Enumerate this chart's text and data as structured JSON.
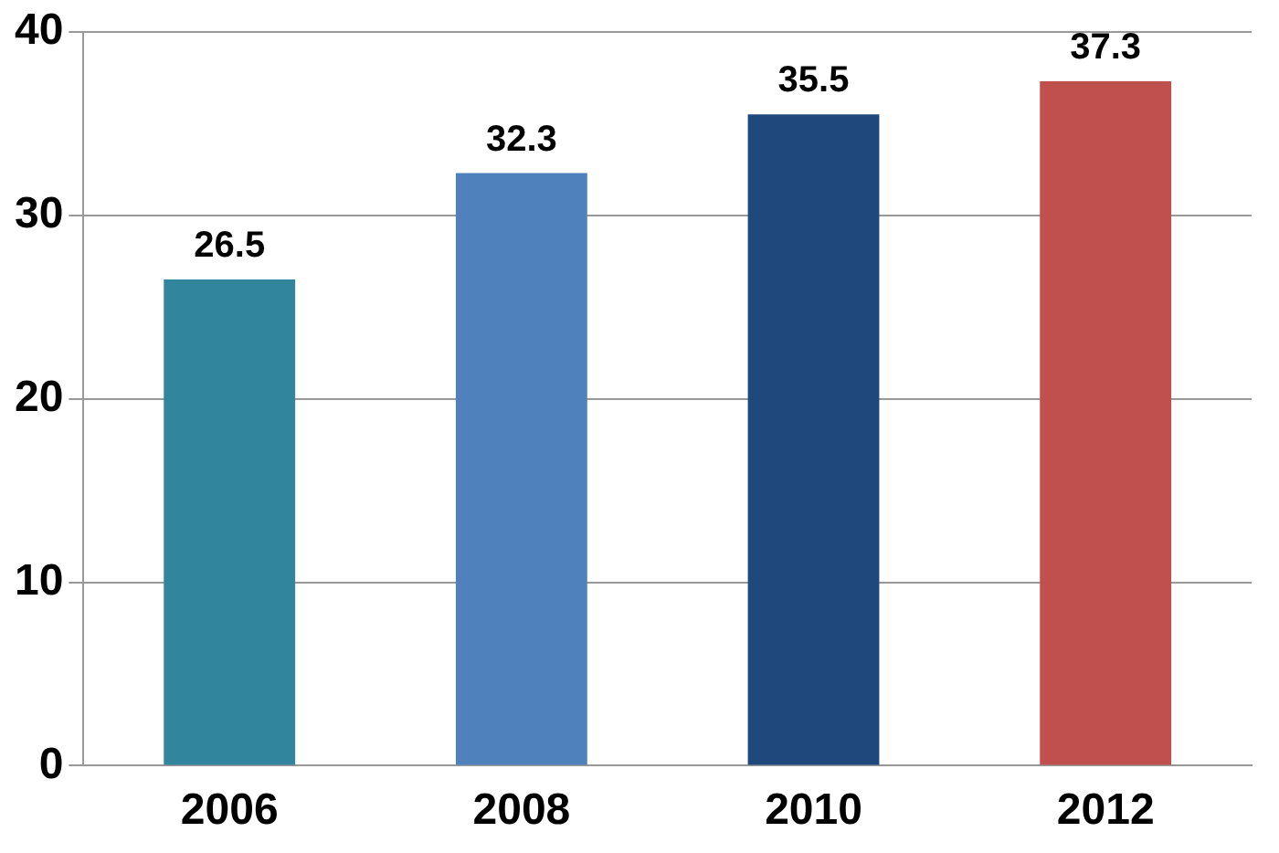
{
  "chart_data": {
    "type": "bar",
    "categories": [
      "2006",
      "2008",
      "2010",
      "2012"
    ],
    "values": [
      26.5,
      32.3,
      35.5,
      37.3
    ],
    "colors": [
      "#31859c",
      "#4f81bd",
      "#1f497d",
      "#c0504d"
    ],
    "ylim": [
      0,
      40
    ],
    "yticks": [
      0,
      10,
      20,
      30,
      40
    ],
    "grid": "y",
    "data_labels": true
  }
}
